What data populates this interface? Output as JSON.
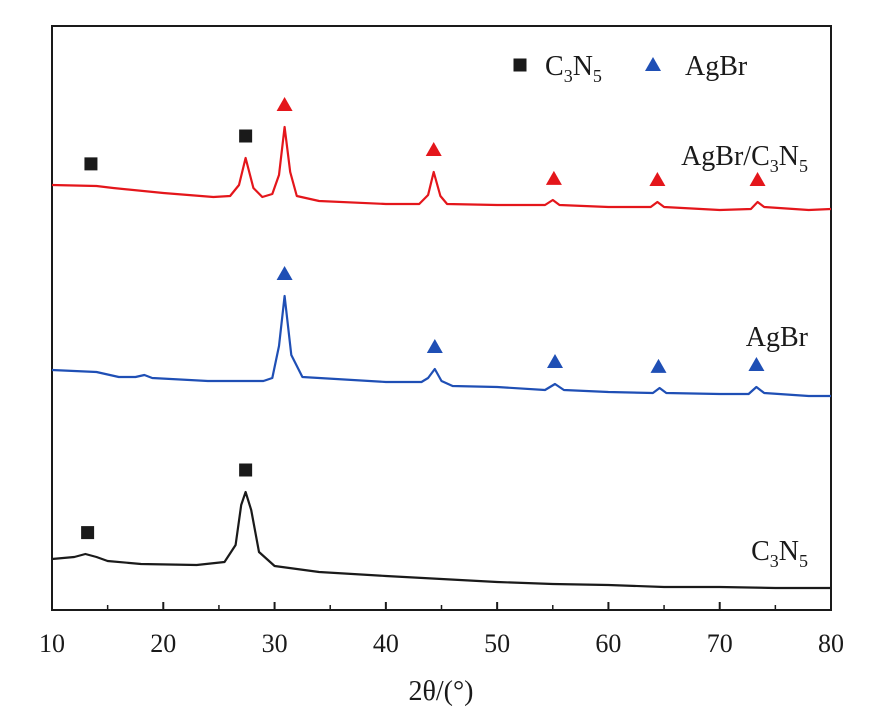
{
  "chart_data": {
    "type": "line",
    "xlabel": "2θ/(°)",
    "xlim": [
      10,
      80
    ],
    "x_ticks": [
      10,
      20,
      30,
      40,
      50,
      60,
      70,
      80
    ],
    "y_ticks_shown": false,
    "grid": false,
    "legend": {
      "placement": "top-right",
      "entries": [
        {
          "marker": "square",
          "text": "C",
          "sub1": "3",
          "text2": "N",
          "sub2": "5",
          "color": "#1a1a1a"
        },
        {
          "marker": "triangle",
          "text": "AgBr",
          "color": "#1f4fb5"
        }
      ]
    },
    "series": [
      {
        "label": {
          "text": "AgBr/C",
          "sub1": "3",
          "text2": "N",
          "sub2": "5"
        },
        "color": "#e4161b",
        "points": [
          [
            10,
            185
          ],
          [
            14,
            186
          ],
          [
            15.5,
            188
          ],
          [
            20,
            193
          ],
          [
            24.5,
            197
          ],
          [
            26,
            196
          ],
          [
            26.8,
            185
          ],
          [
            27.4,
            158
          ],
          [
            28.1,
            188
          ],
          [
            28.9,
            197
          ],
          [
            29.8,
            194
          ],
          [
            30.4,
            175
          ],
          [
            30.9,
            127
          ],
          [
            31.4,
            172
          ],
          [
            32,
            196
          ],
          [
            34,
            201
          ],
          [
            40,
            204
          ],
          [
            43,
            204
          ],
          [
            43.8,
            195
          ],
          [
            44.3,
            172
          ],
          [
            44.9,
            196
          ],
          [
            45.5,
            204
          ],
          [
            50,
            205
          ],
          [
            54.3,
            205
          ],
          [
            55,
            200
          ],
          [
            55.6,
            205
          ],
          [
            60,
            207
          ],
          [
            63.8,
            207
          ],
          [
            64.4,
            202
          ],
          [
            65,
            207
          ],
          [
            70,
            210
          ],
          [
            72.8,
            209
          ],
          [
            73.4,
            202
          ],
          [
            74,
            207
          ],
          [
            78,
            210
          ],
          [
            80,
            209
          ]
        ],
        "markers": [
          {
            "shape": "square",
            "x": 13.5
          },
          {
            "shape": "square",
            "x": 27.4
          },
          {
            "shape": "triangle",
            "x": 30.9
          },
          {
            "shape": "triangle",
            "x": 44.3
          },
          {
            "shape": "triangle",
            "x": 55.1
          },
          {
            "shape": "triangle",
            "x": 64.4
          },
          {
            "shape": "triangle",
            "x": 73.4
          }
        ]
      },
      {
        "label": {
          "text": "AgBr"
        },
        "color": "#1f4fb5",
        "points": [
          [
            10,
            370
          ],
          [
            14,
            372
          ],
          [
            16,
            377
          ],
          [
            17.5,
            377
          ],
          [
            18.3,
            375
          ],
          [
            19,
            378
          ],
          [
            24,
            381
          ],
          [
            29,
            381
          ],
          [
            29.8,
            378
          ],
          [
            30.4,
            346
          ],
          [
            30.9,
            296
          ],
          [
            31.5,
            355
          ],
          [
            32.5,
            377
          ],
          [
            40,
            382
          ],
          [
            43.2,
            382
          ],
          [
            43.8,
            378
          ],
          [
            44.4,
            369
          ],
          [
            45,
            381
          ],
          [
            46,
            386
          ],
          [
            50,
            387
          ],
          [
            54.3,
            390
          ],
          [
            55.2,
            384
          ],
          [
            56,
            390
          ],
          [
            60,
            392
          ],
          [
            64,
            393
          ],
          [
            64.6,
            388
          ],
          [
            65.2,
            393
          ],
          [
            70,
            394
          ],
          [
            72.6,
            394
          ],
          [
            73.3,
            387
          ],
          [
            74,
            393
          ],
          [
            78,
            396
          ],
          [
            80,
            396
          ]
        ],
        "markers": [
          {
            "shape": "triangle",
            "x": 30.9
          },
          {
            "shape": "triangle",
            "x": 44.4
          },
          {
            "shape": "triangle",
            "x": 55.2
          },
          {
            "shape": "triangle",
            "x": 64.5
          },
          {
            "shape": "triangle",
            "x": 73.3
          }
        ]
      },
      {
        "label": {
          "text": "C",
          "sub1": "3",
          "text2": "N",
          "sub2": "5"
        },
        "color": "#1a1a1a",
        "points": [
          [
            10,
            559
          ],
          [
            12,
            557
          ],
          [
            13,
            554
          ],
          [
            14,
            557
          ],
          [
            15,
            561
          ],
          [
            18,
            564
          ],
          [
            23,
            565
          ],
          [
            25.5,
            562
          ],
          [
            26.5,
            545
          ],
          [
            27.0,
            505
          ],
          [
            27.4,
            492
          ],
          [
            27.9,
            510
          ],
          [
            28.6,
            552
          ],
          [
            30,
            566
          ],
          [
            34,
            572
          ],
          [
            40,
            576
          ],
          [
            45,
            579
          ],
          [
            50,
            582
          ],
          [
            55,
            584
          ],
          [
            60,
            585
          ],
          [
            65,
            587
          ],
          [
            70,
            587
          ],
          [
            75,
            588
          ],
          [
            80,
            588
          ]
        ],
        "markers": [
          {
            "shape": "square",
            "x": 13.2
          },
          {
            "shape": "square",
            "x": 27.4
          }
        ]
      }
    ]
  }
}
